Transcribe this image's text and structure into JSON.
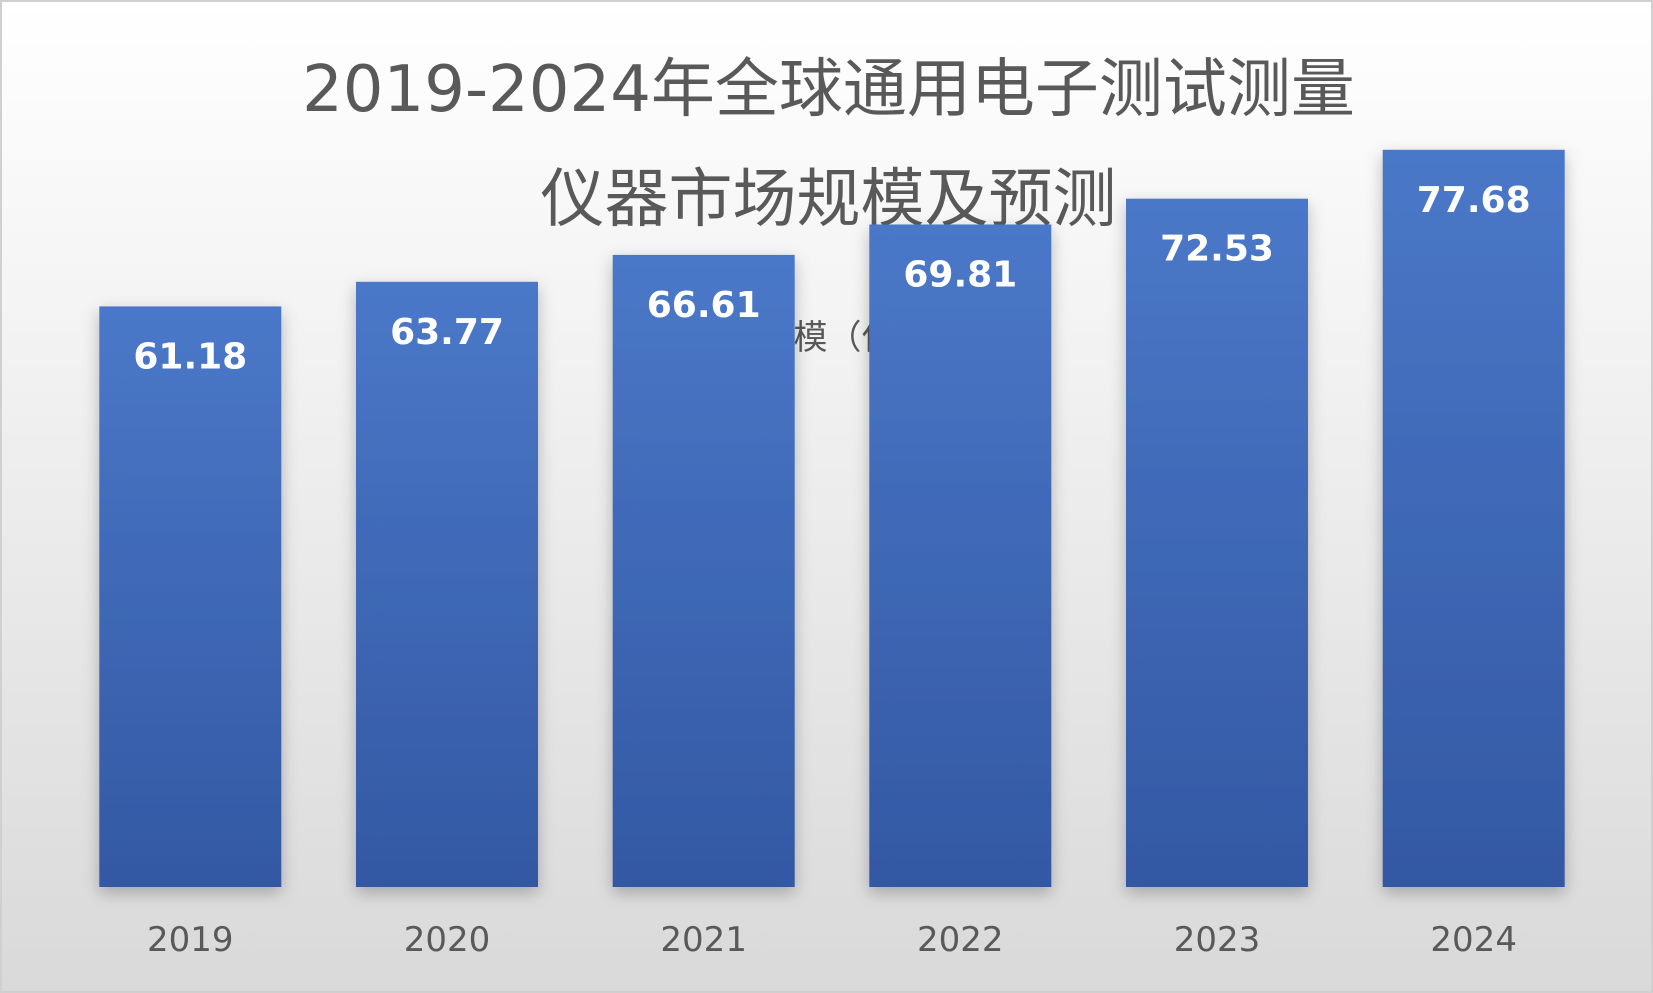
{
  "chart_data": {
    "type": "bar",
    "title_line_1": "2019-2024年全球通用电子测试测量",
    "title_line_2": "仪器市场规模及预测",
    "legend": {
      "position": "top",
      "entries": [
        "市场规模（亿美元）"
      ]
    },
    "categories": [
      "2019",
      "2020",
      "2021",
      "2022",
      "2023",
      "2024"
    ],
    "series": [
      {
        "name": "市场规模（亿美元）",
        "color": "#4472c4",
        "values": [
          61.18,
          63.77,
          66.61,
          69.81,
          72.53,
          77.68
        ],
        "labels": [
          "61.18",
          "63.77",
          "66.61",
          "69.81",
          "72.53",
          "77.68"
        ]
      }
    ],
    "xlabel": "",
    "ylabel": "",
    "ylim": [
      0,
      90
    ],
    "grid": false,
    "y_axis_visible": false,
    "data_labels": "inside-top"
  }
}
